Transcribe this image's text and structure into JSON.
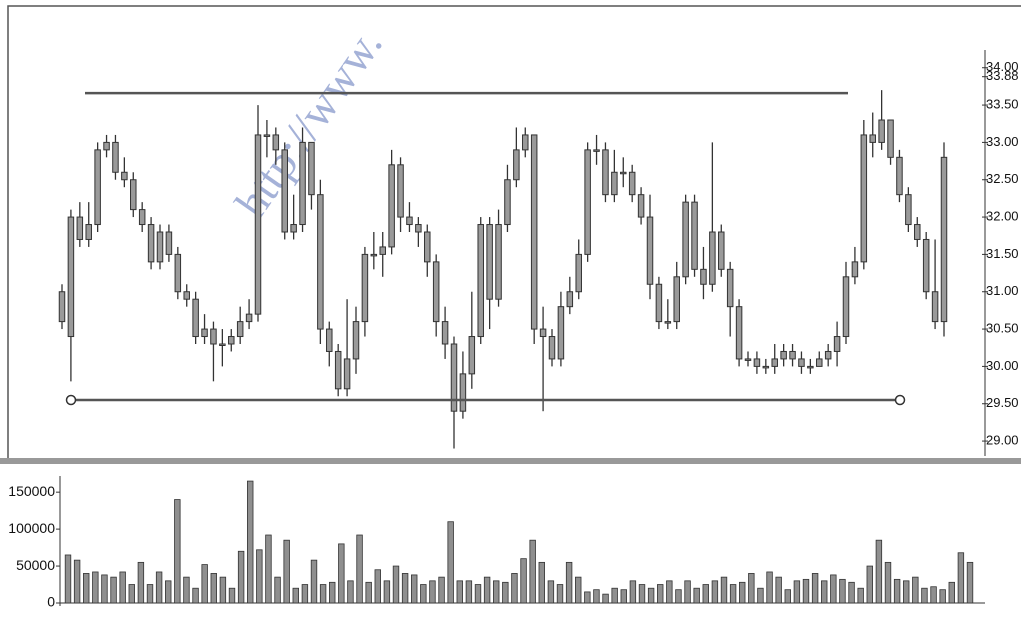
{
  "chart_data": [
    {
      "type": "candlestick",
      "watermark": "http://www.",
      "open": [
        31.0,
        30.4,
        32.0,
        31.7,
        31.9,
        32.9,
        33.0,
        32.6,
        32.5,
        32.1,
        31.9,
        31.4,
        31.8,
        31.5,
        31.0,
        30.9,
        30.4,
        30.5,
        30.3,
        30.3,
        30.4,
        30.6,
        30.7,
        33.1,
        33.1,
        32.9,
        31.8,
        31.9,
        33.0,
        32.3,
        30.5,
        30.2,
        29.7,
        30.1,
        30.6,
        31.5,
        31.5,
        31.6,
        32.7,
        32.0,
        31.9,
        31.8,
        31.4,
        30.6,
        30.3,
        29.4,
        29.9,
        30.4,
        31.9,
        30.9,
        31.9,
        32.5,
        32.9,
        33.1,
        30.5,
        30.4,
        30.1,
        30.8,
        31.0,
        31.5,
        32.9,
        32.9,
        32.3,
        32.6,
        32.6,
        32.3,
        32.0,
        31.1,
        30.6,
        30.6,
        31.2,
        32.2,
        31.3,
        31.1,
        31.8,
        31.3,
        30.8,
        30.1,
        30.1,
        30.0,
        30.0,
        30.1,
        30.2,
        30.1,
        30.0,
        30.0,
        30.1,
        30.2,
        30.4,
        31.2,
        31.4,
        33.1,
        33.0,
        33.3,
        32.8,
        32.3,
        31.9,
        31.7,
        31.0,
        30.6
      ],
      "high": [
        31.1,
        32.1,
        32.2,
        32.2,
        33.0,
        33.1,
        33.1,
        32.8,
        32.6,
        32.2,
        32.0,
        31.9,
        31.9,
        31.6,
        31.1,
        31.0,
        30.7,
        30.6,
        30.5,
        30.5,
        30.8,
        30.9,
        33.5,
        33.3,
        33.2,
        33.0,
        32.3,
        33.2,
        33.0,
        32.5,
        30.6,
        30.3,
        30.9,
        30.8,
        31.6,
        31.8,
        31.8,
        32.9,
        32.8,
        32.2,
        32.0,
        31.9,
        31.5,
        30.8,
        30.4,
        30.2,
        31.0,
        32.0,
        32.0,
        32.1,
        32.7,
        33.2,
        33.2,
        33.1,
        30.8,
        30.5,
        31.0,
        31.2,
        31.7,
        33.0,
        33.1,
        33.0,
        32.9,
        32.8,
        32.7,
        32.4,
        32.3,
        31.2,
        30.9,
        31.4,
        32.3,
        32.3,
        31.6,
        33.0,
        31.9,
        31.4,
        30.9,
        30.2,
        30.2,
        30.1,
        30.3,
        30.3,
        30.3,
        30.2,
        30.1,
        30.2,
        30.3,
        30.6,
        31.4,
        31.6,
        33.3,
        33.4,
        33.7,
        33.3,
        32.9,
        32.4,
        32.0,
        31.8,
        31.7,
        33.0
      ],
      "low": [
        30.5,
        29.8,
        31.6,
        31.6,
        31.8,
        32.8,
        32.5,
        32.4,
        32.0,
        31.8,
        31.3,
        31.3,
        31.4,
        30.9,
        30.8,
        30.3,
        30.3,
        29.8,
        30.0,
        30.2,
        30.3,
        30.5,
        30.6,
        32.8,
        32.7,
        31.7,
        31.7,
        31.8,
        32.1,
        30.3,
        30.0,
        29.6,
        29.6,
        29.9,
        30.4,
        31.3,
        31.2,
        31.5,
        31.8,
        31.8,
        31.6,
        31.2,
        30.4,
        30.1,
        28.9,
        29.3,
        29.7,
        30.3,
        30.5,
        30.8,
        31.8,
        32.4,
        32.8,
        30.3,
        29.4,
        30.0,
        30.0,
        30.7,
        30.9,
        31.4,
        32.7,
        32.2,
        32.2,
        32.4,
        32.2,
        31.9,
        30.9,
        30.5,
        30.5,
        30.5,
        31.1,
        31.2,
        30.9,
        31.0,
        31.2,
        30.4,
        30.0,
        30.0,
        29.9,
        29.9,
        29.9,
        30.0,
        30.0,
        29.9,
        29.9,
        30.0,
        30.0,
        30.0,
        30.3,
        31.1,
        31.3,
        32.8,
        32.9,
        32.7,
        32.2,
        31.8,
        31.6,
        30.9,
        30.5,
        30.4
      ],
      "close": [
        30.6,
        32.0,
        31.7,
        31.9,
        32.9,
        33.0,
        32.6,
        32.5,
        32.1,
        31.9,
        31.4,
        31.8,
        31.5,
        31.0,
        30.9,
        30.4,
        30.5,
        30.3,
        30.3,
        30.4,
        30.6,
        30.7,
        33.1,
        33.1,
        32.9,
        31.8,
        31.9,
        33.0,
        32.3,
        30.5,
        30.2,
        29.7,
        30.1,
        30.6,
        31.5,
        31.5,
        31.6,
        32.7,
        32.0,
        31.9,
        31.8,
        31.4,
        30.6,
        30.3,
        29.4,
        29.9,
        30.4,
        31.9,
        30.9,
        31.9,
        32.5,
        32.9,
        33.1,
        30.5,
        30.4,
        30.1,
        30.8,
        31.0,
        31.5,
        32.9,
        32.9,
        32.3,
        32.6,
        32.6,
        32.3,
        32.0,
        31.1,
        30.6,
        30.6,
        31.2,
        32.2,
        31.3,
        31.1,
        31.8,
        31.3,
        30.8,
        30.1,
        30.1,
        30.0,
        30.0,
        30.1,
        30.2,
        30.1,
        30.0,
        30.0,
        30.1,
        30.2,
        30.4,
        31.2,
        31.4,
        33.1,
        33.0,
        33.3,
        32.8,
        32.3,
        31.9,
        31.7,
        31.0,
        30.6,
        32.8
      ],
      "color": "#9a9a9a",
      "lines": [
        {
          "value": 33.66
        },
        {
          "value": 29.55
        }
      ],
      "ylim": [
        28.8,
        34.8
      ],
      "yticks": [
        {
          "value": 29,
          "label": "29.00"
        },
        {
          "value": 29.5,
          "label": "29.50"
        },
        {
          "value": 30,
          "label": "30.00"
        },
        {
          "value": 30.5,
          "label": "30.50"
        },
        {
          "value": 31,
          "label": "31.00"
        },
        {
          "value": 31.5,
          "label": "31.50"
        },
        {
          "value": 32,
          "label": "32.00"
        },
        {
          "value": 32.5,
          "label": "32.50"
        },
        {
          "value": 33,
          "label": "33.00"
        },
        {
          "value": 33.5,
          "label": "33.50"
        },
        {
          "value": 33.88,
          "label": "33.88"
        },
        {
          "value": 34,
          "label": "34.00"
        }
      ]
    },
    {
      "type": "bar",
      "values": [
        65000,
        58000,
        40000,
        42000,
        38000,
        35000,
        42000,
        25000,
        55000,
        25000,
        42000,
        30000,
        140000,
        35000,
        20000,
        52000,
        40000,
        35000,
        20000,
        70000,
        165000,
        72000,
        92000,
        35000,
        85000,
        20000,
        25000,
        58000,
        25000,
        28000,
        80000,
        30000,
        92000,
        28000,
        45000,
        30000,
        50000,
        40000,
        38000,
        25000,
        30000,
        35000,
        110000,
        30000,
        30000,
        25000,
        35000,
        30000,
        28000,
        40000,
        60000,
        85000,
        55000,
        30000,
        25000,
        55000,
        35000,
        15000,
        18000,
        12000,
        20000,
        18000,
        30000,
        25000,
        20000,
        25000,
        30000,
        18000,
        30000,
        20000,
        25000,
        30000,
        35000,
        25000,
        28000,
        40000,
        20000,
        42000,
        35000,
        18000,
        30000,
        32000,
        40000,
        30000,
        38000,
        32000,
        28000,
        20000,
        50000,
        85000,
        55000,
        32000,
        30000,
        35000,
        20000,
        22000,
        18000,
        28000,
        68000,
        55000
      ],
      "color": "#8f8f8f",
      "ylim": [
        0,
        180000
      ],
      "yticks": [
        0,
        50000,
        100000,
        150000
      ]
    }
  ]
}
